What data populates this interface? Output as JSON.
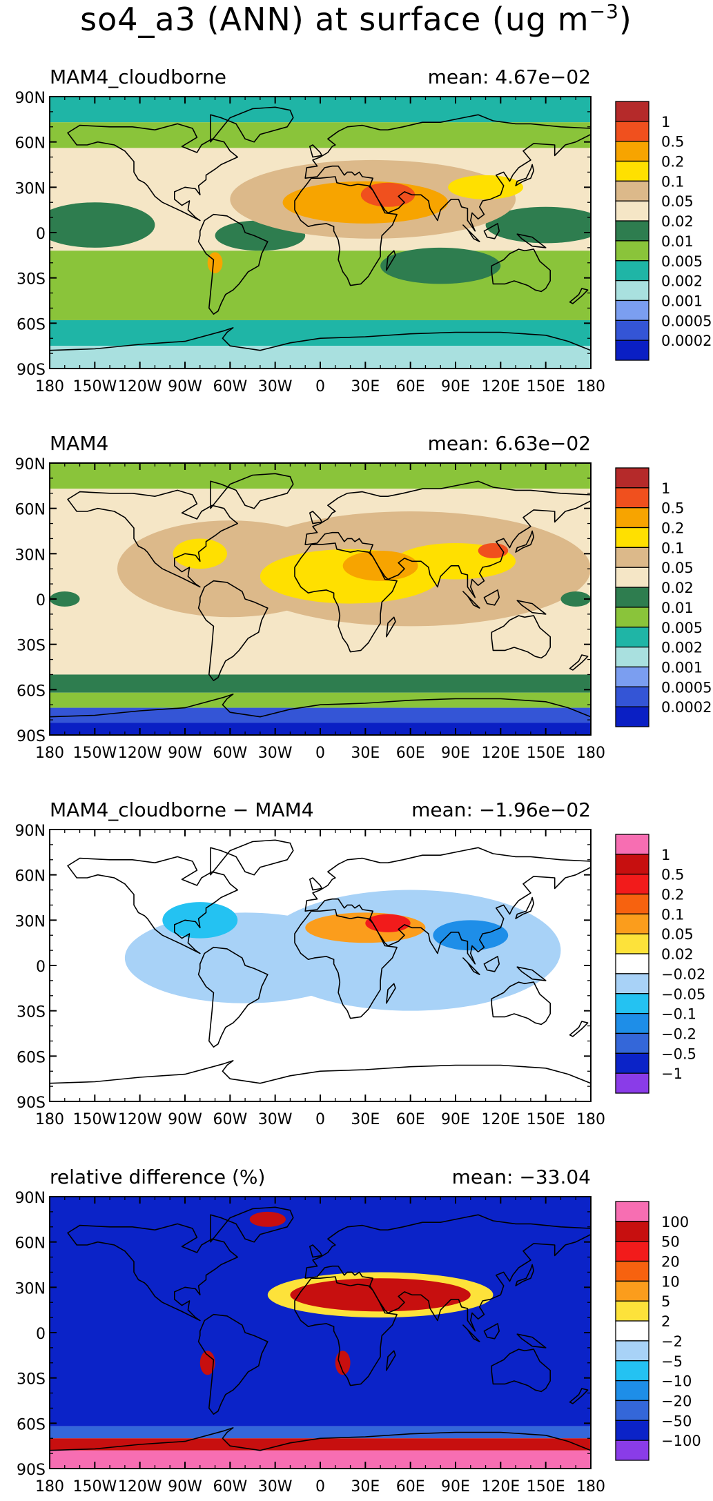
{
  "figure": {
    "title_main": "so4_a3 (ANN) at surface (ug m",
    "title_unit_exp": "−3",
    "title_close": ")"
  },
  "axes": {
    "lat_ticks": [
      "90N",
      "60N",
      "30N",
      "0",
      "30S",
      "60S",
      "90S"
    ],
    "lon_ticks": [
      "180",
      "150W",
      "120W",
      "90W",
      "60W",
      "30W",
      "0",
      "30E",
      "60E",
      "90E",
      "120E",
      "150E",
      "180"
    ]
  },
  "panels": [
    {
      "id": "cloudborne",
      "label": "MAM4_cloudborne",
      "mean": "mean: 4.67e−02",
      "palette": "abs",
      "legend": {
        "colors": [
          "#b52a2a",
          "#f0501e",
          "#f7a400",
          "#ffe000",
          "#dcb98a",
          "#f5e6c6",
          "#2e7d4f",
          "#8ac43a",
          "#1fb5a6",
          "#a9e0df",
          "#7b9ef0",
          "#3455d6",
          "#0a1fc4"
        ],
        "labels": [
          "1",
          "0.5",
          "0.2",
          "0.1",
          "0.05",
          "0.02",
          "0.01",
          "0.005",
          "0.002",
          "0.001",
          "0.0005",
          "0.0002"
        ]
      }
    },
    {
      "id": "mam4",
      "label": "MAM4",
      "mean": "mean: 6.63e−02",
      "palette": "abs",
      "legend": {
        "colors": [
          "#b52a2a",
          "#f0501e",
          "#f7a400",
          "#ffe000",
          "#dcb98a",
          "#f5e6c6",
          "#2e7d4f",
          "#8ac43a",
          "#1fb5a6",
          "#a9e0df",
          "#7b9ef0",
          "#3455d6",
          "#0a1fc4"
        ],
        "labels": [
          "1",
          "0.5",
          "0.2",
          "0.1",
          "0.05",
          "0.02",
          "0.01",
          "0.005",
          "0.002",
          "0.001",
          "0.0005",
          "0.0002"
        ]
      }
    },
    {
      "id": "diff",
      "label": "MAM4_cloudborne − MAM4",
      "mean": "mean: −1.96e−02",
      "palette": "diff",
      "legend": {
        "colors": [
          "#f76eb2",
          "#c70f0f",
          "#f21b1b",
          "#f7620f",
          "#fb9d1c",
          "#fde23a",
          "#ffffff",
          "#a8d2f7",
          "#24c2f2",
          "#1e8ee8",
          "#3467d9",
          "#0b23c8",
          "#8a3ce8"
        ],
        "labels": [
          "1",
          "0.5",
          "0.2",
          "0.1",
          "0.05",
          "0.02",
          "−0.02",
          "−0.05",
          "−0.1",
          "−0.2",
          "−0.5",
          "−1"
        ]
      }
    },
    {
      "id": "rel",
      "label": "relative difference (%)",
      "mean": "mean: −33.04",
      "palette": "rel",
      "legend": {
        "colors": [
          "#f76eb2",
          "#c70f0f",
          "#f21b1b",
          "#f7620f",
          "#fb9d1c",
          "#fde23a",
          "#ffffff",
          "#a8d2f7",
          "#24c2f2",
          "#1e8ee8",
          "#3467d9",
          "#0b23c8",
          "#8a3ce8"
        ],
        "labels": [
          "100",
          "50",
          "20",
          "10",
          "5",
          "2",
          "−2",
          "−5",
          "−10",
          "−20",
          "−50",
          "−100"
        ]
      }
    }
  ]
}
